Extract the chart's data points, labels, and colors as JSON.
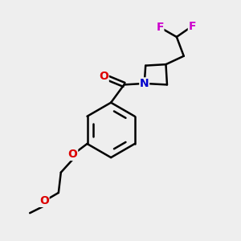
{
  "background_color": "#eeeeee",
  "atom_colors": {
    "C": "#000000",
    "N": "#0000cc",
    "O": "#dd0000",
    "F": "#cc00cc"
  },
  "bond_color": "#000000",
  "bond_width": 1.8,
  "figsize": [
    3.0,
    3.0
  ],
  "dpi": 100
}
